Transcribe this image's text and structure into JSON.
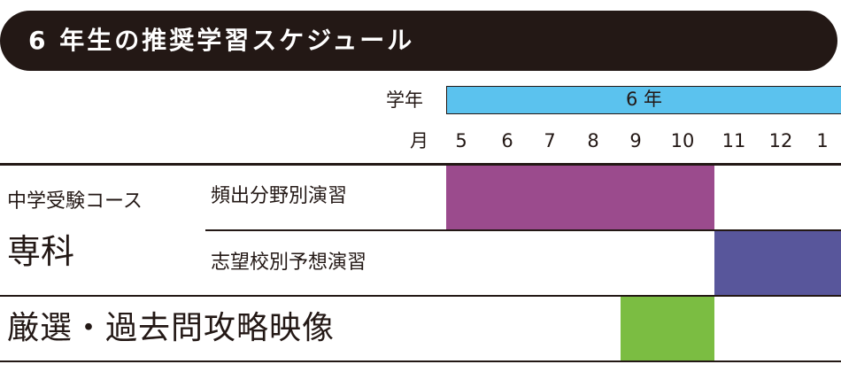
{
  "header": {
    "title": "6 年生の推奨学習スケジュール"
  },
  "grade_row": {
    "label": "学年",
    "value": "6 年"
  },
  "month_row": {
    "label": "月",
    "months": [
      "5",
      "6",
      "7",
      "8",
      "9",
      "10",
      "11",
      "12",
      "1"
    ]
  },
  "course": {
    "label": "中学受験コース",
    "sub_label": "専科",
    "rows": [
      {
        "label": "頻出分野別演習",
        "start_month": "5",
        "end_month": "10",
        "color": "#9b4b8d"
      },
      {
        "label": "志望校別予想演習",
        "start_month": "11",
        "end_month": "1",
        "color": "#58569b"
      }
    ]
  },
  "video": {
    "label": "厳選・過去問攻略映像",
    "start_month": "9",
    "end_month": "10",
    "color": "#7bbd42"
  },
  "colors": {
    "header_bg": "#231815",
    "grade_bar": "#5bc2ee",
    "text": "#231815"
  }
}
